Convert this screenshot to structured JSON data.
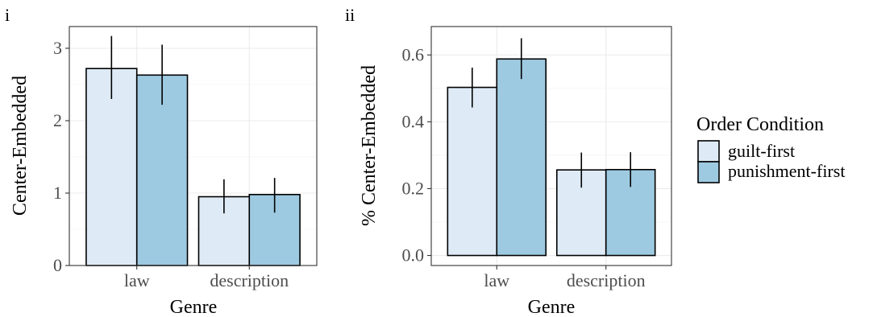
{
  "chart_data": [
    {
      "type": "bar",
      "panel_label": "i",
      "xlabel": "Genre",
      "ylabel": "Center-Embedded",
      "categories": [
        "law",
        "description"
      ],
      "ylim": [
        0,
        3.3
      ],
      "yticks": [
        0,
        1,
        2,
        3
      ],
      "ytick_labels": [
        "0",
        "1",
        "2",
        "3"
      ],
      "series": [
        {
          "name": "guilt-first",
          "color": "#deebf7",
          "values": [
            2.72,
            0.95
          ],
          "err_low": [
            2.3,
            0.72
          ],
          "err_high": [
            3.17,
            1.19
          ]
        },
        {
          "name": "punishment-first",
          "color": "#9ecae1",
          "values": [
            2.63,
            0.98
          ],
          "err_low": [
            2.22,
            0.73
          ],
          "err_high": [
            3.05,
            1.21
          ]
        }
      ],
      "grid": true
    },
    {
      "type": "bar",
      "panel_label": "ii",
      "xlabel": "Genre",
      "ylabel": "% Center-Embedded",
      "categories": [
        "law",
        "description"
      ],
      "ylim": [
        -0.03,
        0.685
      ],
      "yticks": [
        0.0,
        0.2,
        0.4,
        0.6
      ],
      "ytick_labels": [
        "0.0",
        "0.2",
        "0.4",
        "0.6"
      ],
      "series": [
        {
          "name": "guilt-first",
          "color": "#deebf7",
          "values": [
            0.503,
            0.256
          ],
          "err_low": [
            0.443,
            0.203
          ],
          "err_high": [
            0.562,
            0.308
          ]
        },
        {
          "name": "punishment-first",
          "color": "#9ecae1",
          "values": [
            0.588,
            0.257
          ],
          "err_low": [
            0.528,
            0.205
          ],
          "err_high": [
            0.65,
            0.309
          ]
        }
      ],
      "grid": true
    }
  ],
  "legend": {
    "title": "Order Condition",
    "items": [
      {
        "label": "guilt-first",
        "color": "#deebf7"
      },
      {
        "label": "punishment-first",
        "color": "#9ecae1"
      }
    ]
  }
}
